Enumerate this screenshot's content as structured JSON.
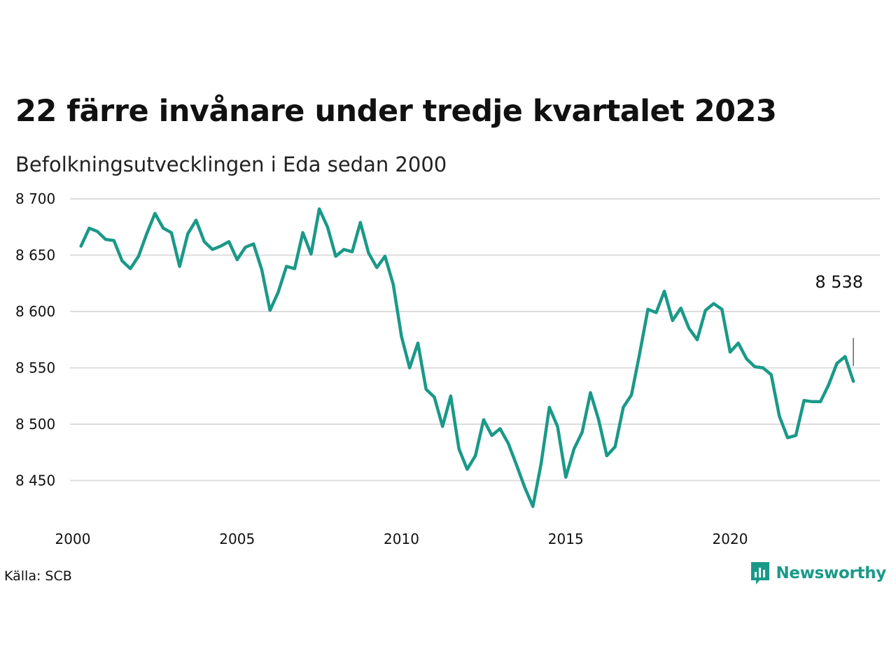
{
  "header": {
    "title": "22 färre invånare under tredje kvartalet 2023",
    "subtitle": "Befolkningsutvecklingen i Eda sedan 2000"
  },
  "footer": {
    "source": "Källa: SCB",
    "brand": "Newsworthy",
    "logo_icon": "bar-chart-speech-bubble-icon"
  },
  "colors": {
    "line": "#1a9988",
    "grid": "#dddddd",
    "brand": "#1a9988"
  },
  "chart_data": {
    "type": "line",
    "title": "22 färre invånare under tredje kvartalet 2023",
    "subtitle": "Befolkningsutvecklingen i Eda sedan 2000",
    "xlabel": "",
    "ylabel": "",
    "x_ticks": [
      "2000",
      "2005",
      "2010",
      "2015",
      "2020"
    ],
    "x_tick_values": [
      2000,
      2005,
      2010,
      2015,
      2020
    ],
    "y_ticks": [
      "8 450",
      "8 500",
      "8 550",
      "8 600",
      "8 650",
      "8 700"
    ],
    "y_tick_values": [
      8450,
      8500,
      8550,
      8600,
      8650,
      8700
    ],
    "ylim": [
      8420,
      8705
    ],
    "xlim": [
      2000,
      2024
    ],
    "grid": "horizontal",
    "end_label": "8 538",
    "series": [
      {
        "x": [
          2000.25,
          2000.5,
          2000.75,
          2001,
          2001.25,
          2001.5,
          2001.75,
          2002,
          2002.25,
          2002.5,
          2002.75,
          2003,
          2003.25,
          2003.5,
          2003.75,
          2004,
          2004.25,
          2004.5,
          2004.75,
          2005,
          2005.25,
          2005.5,
          2005.75,
          2006,
          2006.25,
          2006.5,
          2006.75,
          2007,
          2007.25,
          2007.5,
          2007.75,
          2008,
          2008.25,
          2008.5,
          2008.75,
          2009,
          2009.25,
          2009.5,
          2009.75,
          2010,
          2010.25,
          2010.5,
          2010.75,
          2011,
          2011.25,
          2011.5,
          2011.75,
          2012,
          2012.25,
          2012.5,
          2012.75,
          2013,
          2013.25,
          2013.5,
          2013.75,
          2014,
          2014.25,
          2014.5,
          2014.75,
          2015,
          2015.25,
          2015.5,
          2015.75,
          2016,
          2016.25,
          2016.5,
          2016.75,
          2017,
          2017.25,
          2017.5,
          2017.75,
          2018,
          2018.25,
          2018.5,
          2018.75,
          2019,
          2019.25,
          2019.5,
          2019.75,
          2020,
          2020.25,
          2020.5,
          2020.75,
          2021,
          2021.25,
          2021.5,
          2021.75,
          2022,
          2022.25,
          2022.5,
          2022.75,
          2023,
          2023.25,
          2023.5,
          2023.75
        ],
        "values": [
          8658,
          8674,
          8671,
          8664,
          8663,
          8645,
          8638,
          8649,
          8669,
          8687,
          8674,
          8670,
          8640,
          8669,
          8681,
          8662,
          8655,
          8658,
          8662,
          8646,
          8657,
          8660,
          8637,
          8601,
          8617,
          8640,
          8638,
          8670,
          8651,
          8691,
          8675,
          8649,
          8655,
          8653,
          8679,
          8652,
          8639,
          8649,
          8624,
          8578,
          8550,
          8572,
          8531,
          8524,
          8498,
          8525,
          8478,
          8460,
          8472,
          8504,
          8490,
          8496,
          8483,
          8464,
          8444,
          8427,
          8465,
          8515,
          8498,
          8453,
          8478,
          8493,
          8528,
          8504,
          8472,
          8480,
          8515,
          8526,
          8563,
          8602,
          8599,
          8618,
          8592,
          8603,
          8585,
          8575,
          8601,
          8607,
          8602,
          8564,
          8572,
          8558,
          8551,
          8550,
          8544,
          8507,
          8488,
          8490,
          8521,
          8520,
          8520,
          8535,
          8554,
          8560,
          8538
        ]
      }
    ]
  }
}
